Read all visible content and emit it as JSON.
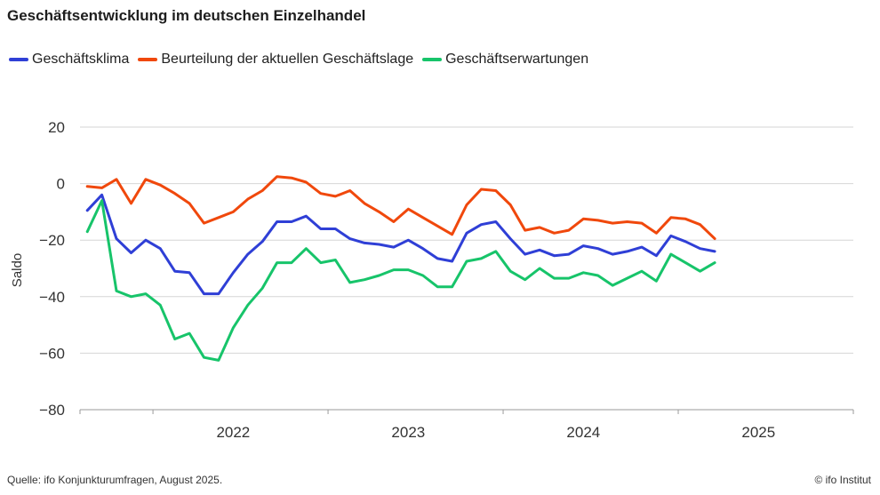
{
  "title": "Geschäftsentwicklung im deutschen Einzelhandel",
  "source": "Quelle: ifo Konjunkturumfragen,  August 2025.",
  "credit": "© ifo Institut",
  "chart_data": {
    "type": "line",
    "ylabel": "Saldo",
    "ylim": [
      -80,
      20
    ],
    "yticks": [
      20,
      0,
      -20,
      -40,
      -60,
      -80
    ],
    "ytick_labels": [
      "20",
      "0",
      "−20",
      "−40",
      "−60",
      "−80"
    ],
    "grid": true,
    "legend_position": "top-left",
    "x_start": "2021-08",
    "x_end": "2025-07",
    "year_labels": [
      {
        "label": "2022",
        "month": "2022-06"
      },
      {
        "label": "2023",
        "month": "2023-06"
      },
      {
        "label": "2024",
        "month": "2024-06"
      },
      {
        "label": "2025",
        "month": "2025-06"
      }
    ],
    "year_ticks": [
      "2022-01",
      "2023-01",
      "2024-01",
      "2025-01",
      "2025-12"
    ],
    "series": [
      {
        "name": "Geschäftsklima",
        "color": "#2f3fd6",
        "values": [
          -9.5,
          -4,
          -19.5,
          -24.5,
          -20,
          -23,
          -31,
          -31.5,
          -39,
          -39,
          -31.5,
          -25,
          -20.5,
          -13.5,
          -13.5,
          -11.5,
          -16,
          -16,
          -19.5,
          -21,
          -21.5,
          -22.5,
          -20,
          -23,
          -26.5,
          -27.5,
          -17.5,
          -14.5,
          -13.5,
          -19.5,
          -25,
          -23.5,
          -25.5,
          -25,
          -22,
          -23,
          -25,
          -24,
          -22.5,
          -25.5,
          -18.5,
          -20.5,
          -23,
          -24
        ]
      },
      {
        "name": "Beurteilung der aktuellen Geschäftslage",
        "color": "#f0480c",
        "values": [
          -1,
          -1.5,
          1.5,
          -7,
          1.5,
          -0.5,
          -3.5,
          -7,
          -14,
          -12,
          -10,
          -5.5,
          -2.5,
          2.5,
          2,
          0.5,
          -3.5,
          -4.5,
          -2.5,
          -7,
          -10,
          -13.5,
          -9,
          -12,
          -15,
          -18,
          -7.5,
          -2,
          -2.5,
          -7.5,
          -16.5,
          -15.5,
          -17.5,
          -16.5,
          -12.5,
          -13,
          -14,
          -13.5,
          -14,
          -17.5,
          -12,
          -12.5,
          -14.5,
          -19.5
        ]
      },
      {
        "name": "Geschäftserwartungen",
        "color": "#17c46a",
        "values": [
          -17,
          -6,
          -38,
          -40,
          -39,
          -43,
          -55,
          -53,
          -61.5,
          -62.5,
          -51,
          -43,
          -37,
          -28,
          -28,
          -23,
          -28,
          -27,
          -35,
          -34,
          -32.5,
          -30.5,
          -30.5,
          -32.5,
          -36.5,
          -36.5,
          -27.5,
          -26.5,
          -24,
          -31,
          -34,
          -30,
          -33.5,
          -33.5,
          -31.5,
          -32.5,
          -36,
          -33.5,
          -31,
          -34.5,
          -25,
          -28,
          -31,
          -28
        ]
      }
    ]
  }
}
